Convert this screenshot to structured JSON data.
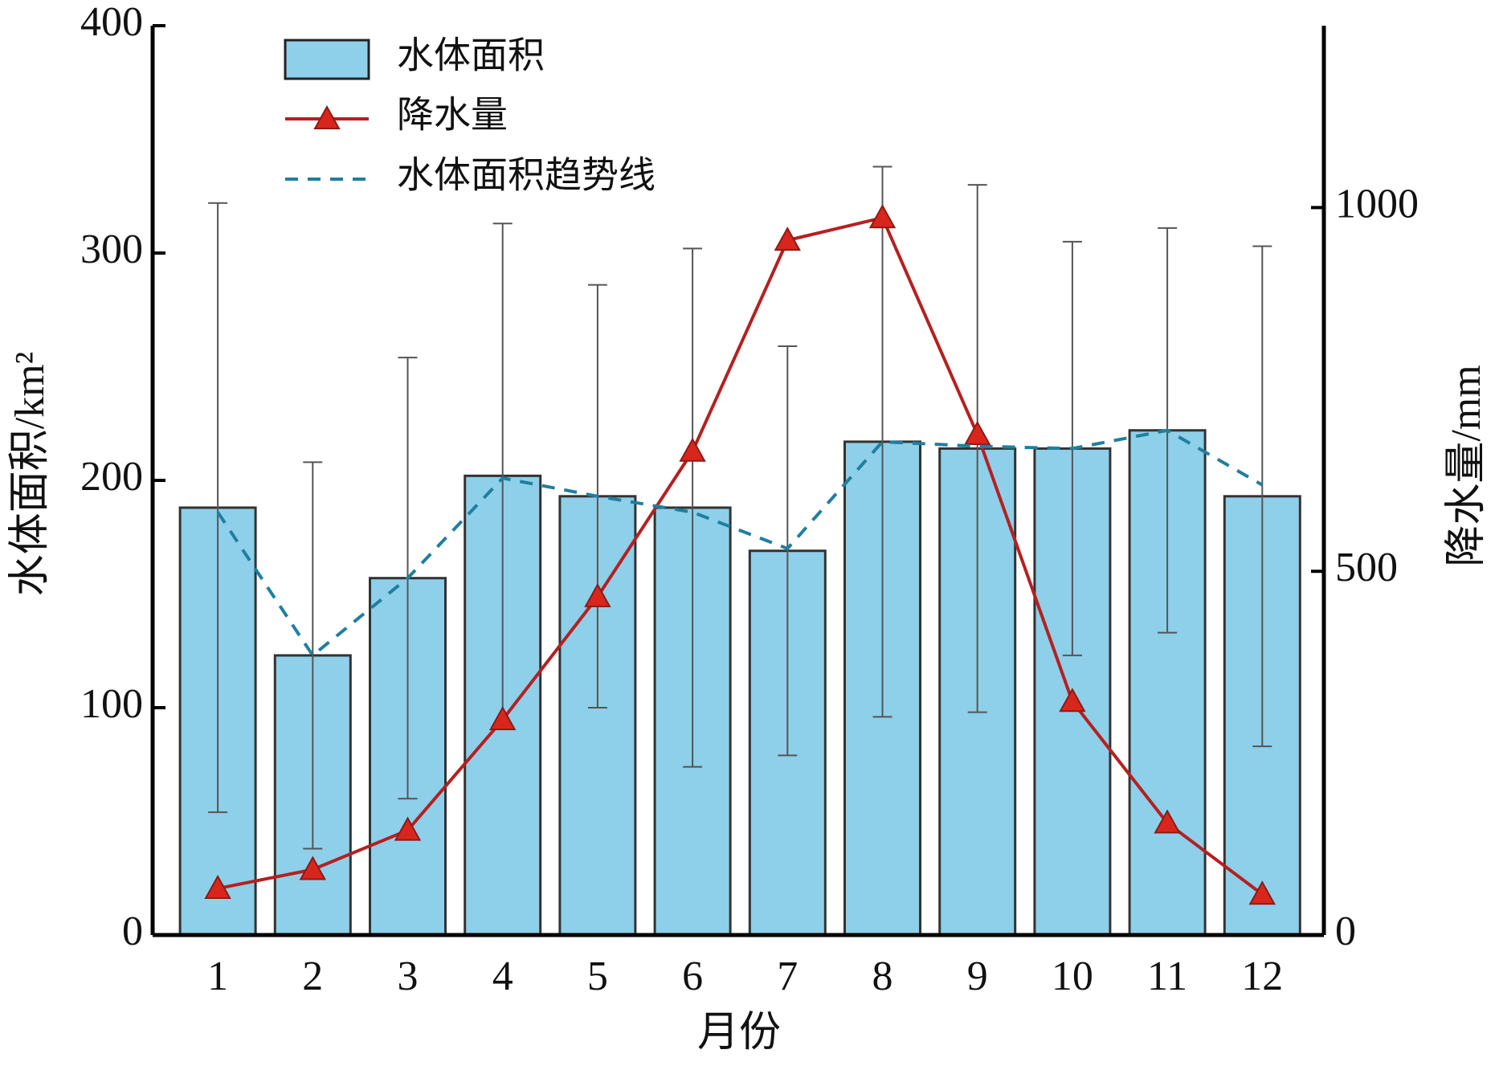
{
  "chart_data": {
    "type": "bar-line",
    "categories": [
      "1",
      "2",
      "3",
      "4",
      "5",
      "6",
      "7",
      "8",
      "9",
      "10",
      "11",
      "12"
    ],
    "x_label": "月份",
    "y_label": "水体面积/km²",
    "y2_label": "降水量/mm",
    "ylim": [
      0,
      400
    ],
    "yticks": [
      0,
      100,
      200,
      300,
      400
    ],
    "y2lim": [
      0,
      1250
    ],
    "y2ticks": [
      0,
      500,
      1000
    ],
    "legend": "upper left",
    "series": [
      {
        "name": "水体面积",
        "type": "bar",
        "color": "#8ecfe9",
        "values": [
          188,
          123,
          157,
          202,
          193,
          188,
          169,
          217,
          214,
          214,
          222,
          193
        ],
        "errors": [
          134,
          85,
          97,
          111,
          93,
          114,
          90,
          121,
          116,
          91,
          89,
          110
        ]
      },
      {
        "name": "降水量",
        "type": "line",
        "axis": "y2",
        "color": "#b52020",
        "values": [
          64,
          90,
          144,
          296,
          465,
          665,
          955,
          986,
          688,
          321,
          154,
          56
        ]
      },
      {
        "name": "水体面积趋势线",
        "type": "dashed",
        "color": "#1f7f9f",
        "values": [
          186,
          123,
          157,
          201,
          193,
          186,
          170,
          217,
          215,
          214,
          222,
          198
        ]
      }
    ]
  }
}
